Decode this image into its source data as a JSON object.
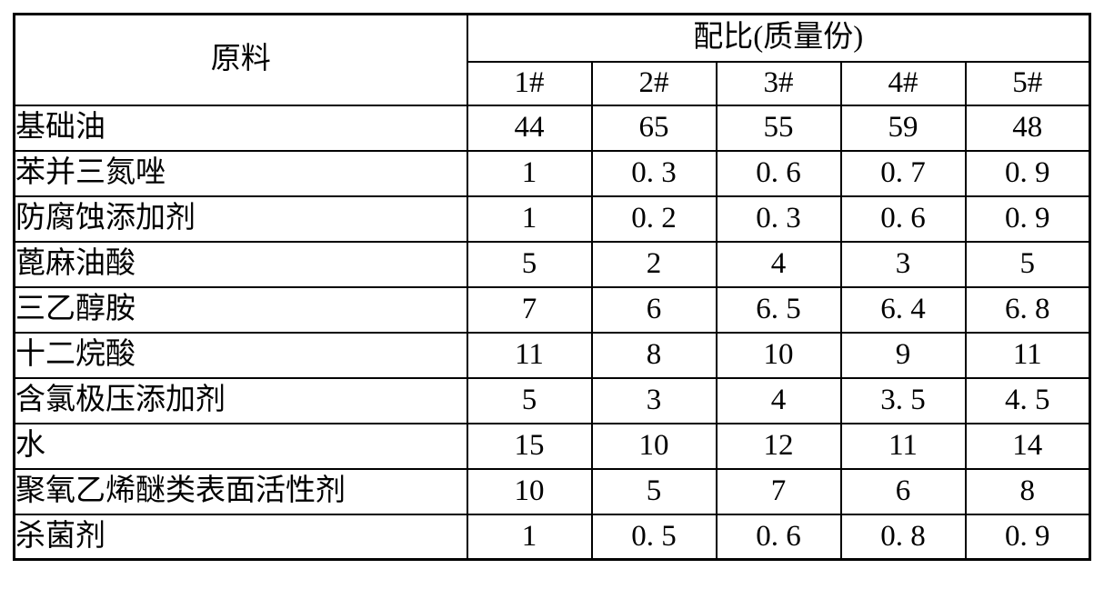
{
  "page": {
    "background_color": "#ffffff",
    "border_color": "#000000",
    "text_color": "#000000"
  },
  "table": {
    "corner_header": "原料",
    "group_header": "配比(质量份)",
    "sample_headers": [
      "1#",
      "2#",
      "3#",
      "4#",
      "5#"
    ],
    "rows": [
      {
        "material": "基础油",
        "values": [
          "44",
          "65",
          "55",
          "59",
          "48"
        ]
      },
      {
        "material": "苯并三氮唑",
        "values": [
          "1",
          "0. 3",
          "0. 6",
          "0. 7",
          "0. 9"
        ]
      },
      {
        "material": "防腐蚀添加剂",
        "values": [
          "1",
          "0. 2",
          "0. 3",
          "0. 6",
          "0. 9"
        ]
      },
      {
        "material": "蓖麻油酸",
        "values": [
          "5",
          "2",
          "4",
          "3",
          "5"
        ]
      },
      {
        "material": "三乙醇胺",
        "values": [
          "7",
          "6",
          "6. 5",
          "6. 4",
          "6. 8"
        ]
      },
      {
        "material": "十二烷酸",
        "values": [
          "11",
          "8",
          "10",
          "9",
          "11"
        ]
      },
      {
        "material": "含氯极压添加剂",
        "values": [
          "5",
          "3",
          "4",
          "3. 5",
          "4. 5"
        ]
      },
      {
        "material": "水",
        "values": [
          "15",
          "10",
          "12",
          "11",
          "14"
        ]
      },
      {
        "material": "聚氧乙烯醚类表面活性剂",
        "values": [
          "10",
          "5",
          "7",
          "6",
          "8"
        ]
      },
      {
        "material": "杀菌剂",
        "values": [
          "1",
          "0. 5",
          "0. 6",
          "0. 8",
          "0. 9"
        ]
      }
    ]
  }
}
